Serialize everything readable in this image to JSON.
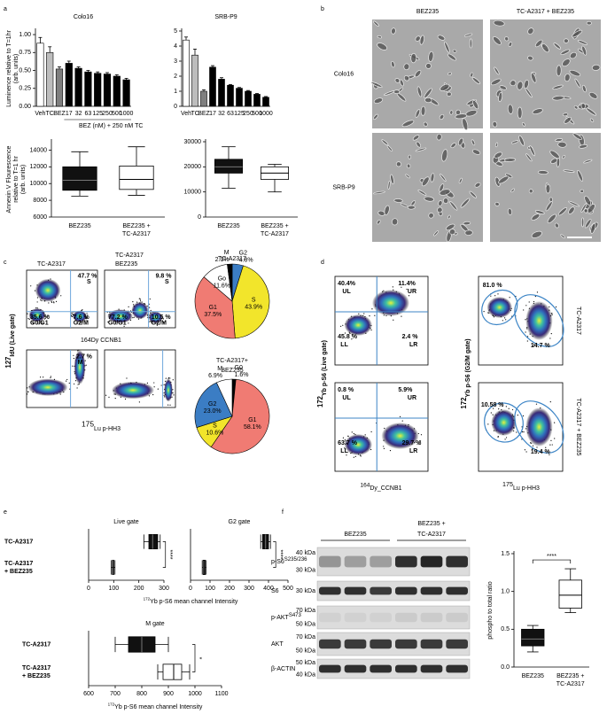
{
  "panel_labels": [
    "a",
    "b",
    "c",
    "d",
    "e",
    "f"
  ],
  "chart_data": [
    {
      "type": "bar",
      "title": "Colo16",
      "ylabel": [
        "Luminence relative to T=1hr",
        "(arb. units)"
      ],
      "xlabel": "BEZ (nM) + 250 nM TC",
      "categories": [
        "Veh",
        "TC",
        "BEZ",
        "17",
        "32",
        "63",
        "125",
        "250",
        "500",
        "1000"
      ],
      "values": [
        0.88,
        0.75,
        0.52,
        0.6,
        0.53,
        0.48,
        0.46,
        0.45,
        0.42,
        0.37
      ],
      "errors": [
        0.08,
        0.08,
        0.03,
        0.03,
        0.02,
        0.02,
        0.02,
        0.02,
        0.02,
        0.02
      ],
      "colors": [
        "#ffffff",
        "#bdbdbd",
        "#7f7f7f",
        "#000000",
        "#000000",
        "#000000",
        "#000000",
        "#000000",
        "#000000",
        "#000000"
      ],
      "ylim": [
        0,
        1.05
      ],
      "yticks": [
        {
          "value": 0,
          "label": "0.00"
        },
        0.25,
        {
          "value": 0.5,
          "label": "0.50"
        },
        0.75,
        {
          "value": 1,
          "label": "1.00"
        }
      ]
    },
    {
      "type": "bar",
      "title": "SRB-P9",
      "categories": [
        "Veh",
        "TC",
        "BEZ",
        "17",
        "32",
        "63",
        "125",
        "250",
        "500",
        "1000"
      ],
      "values": [
        4.4,
        3.4,
        1.0,
        2.6,
        1.8,
        1.4,
        1.2,
        1.0,
        0.8,
        0.6
      ],
      "errors": [
        0.2,
        0.4,
        0.1,
        0.1,
        0.1,
        0.05,
        0.05,
        0.05,
        0.05,
        0.05
      ],
      "colors": [
        "#ffffff",
        "#bdbdbd",
        "#7f7f7f",
        "#000000",
        "#000000",
        "#000000",
        "#000000",
        "#000000",
        "#000000",
        "#000000"
      ],
      "ylim": [
        0,
        5
      ],
      "yticks": [
        0,
        1,
        2,
        3,
        4,
        5
      ]
    },
    {
      "type": "box",
      "ylabel": [
        "Annexin V Flourescence",
        "relative to T=1 hr",
        "(arb. units)"
      ],
      "categories": [
        [
          "BEZ235"
        ],
        [
          "BEZ235 +",
          "TC-A2317"
        ]
      ],
      "stats": [
        {
          "min": 8500,
          "q1": 9200,
          "median": 10400,
          "q3": 12000,
          "max": 13800
        },
        {
          "min": 8600,
          "q1": 9300,
          "median": 10500,
          "q3": 12100,
          "max": 14400
        }
      ],
      "colors": [
        "#111111",
        "#ffffff"
      ],
      "ylim": [
        6000,
        15000
      ],
      "yticks": [
        6000,
        8000,
        10000,
        12000,
        14000
      ]
    },
    {
      "type": "box",
      "categories": [
        [
          "BEZ235"
        ],
        [
          "BEZ235 +",
          "TC-A2317"
        ]
      ],
      "stats": [
        {
          "min": 11500,
          "q1": 17500,
          "median": 20000,
          "q3": 23000,
          "max": 28000
        },
        {
          "min": 10000,
          "q1": 15000,
          "median": 17500,
          "q3": 20000,
          "max": 21000
        }
      ],
      "colors": [
        "#111111",
        "#ffffff"
      ],
      "ylim": [
        0,
        30000
      ],
      "yticks": [
        0,
        10000,
        20000,
        30000
      ]
    },
    {
      "type": "pie",
      "title": [
        "TC-A2317"
      ],
      "categories": [
        "G2",
        "S",
        "G1",
        "Go",
        "M"
      ],
      "values": [
        4.8,
        43.9,
        37.5,
        11.6,
        2.1
      ],
      "value_labels": [
        "4.8%",
        "43.9%",
        "37.5%",
        "11.6%",
        "2.1%"
      ],
      "colors": [
        "#3b7dc4",
        "#f2e52b",
        "#f07b73",
        "#ffffff",
        "#000000"
      ]
    },
    {
      "type": "pie",
      "title": [
        "TC-A2317+",
        "BEZ235"
      ],
      "categories": [
        "G0",
        "G1",
        "S",
        "G2",
        "M"
      ],
      "values": [
        1.6,
        58.1,
        10.6,
        23.0,
        6.9
      ],
      "value_labels": [
        "1.6%",
        "58.1%",
        "10.6%",
        "23.0%",
        "6.9%"
      ],
      "colors": [
        "#000000",
        "#f07b73",
        "#f2e52b",
        "#3b7dc4",
        "#ffffff"
      ]
    },
    {
      "type": "hbox",
      "title": "Live gate",
      "categories": [
        [
          "TC-A2317"
        ],
        [
          "TC-A2317",
          "+ BEZ235"
        ]
      ],
      "stats": [
        {
          "min": 220,
          "q1": 240,
          "median": 255,
          "q3": 275,
          "max": 285
        },
        {
          "min": 90,
          "q1": 95,
          "median": 98,
          "q3": 100,
          "max": 105
        }
      ],
      "colors": [
        "#111111",
        "#ffffff"
      ],
      "xlim": [
        0,
        300
      ],
      "xticks": [
        0,
        100,
        200,
        300
      ],
      "annotation": "****",
      "xlabel": {
        "sup": "172",
        "text": "Yb p-S6 mean channel Intensity"
      }
    },
    {
      "type": "hbox",
      "title": "G2 gate",
      "stats": [
        {
          "min": 360,
          "q1": 370,
          "median": 385,
          "q3": 400,
          "max": 410
        },
        {
          "min": 60,
          "q1": 65,
          "median": 70,
          "q3": 75,
          "max": 80
        }
      ],
      "colors": [
        "#111111",
        "#ffffff"
      ],
      "xlim": [
        0,
        500
      ],
      "xticks": [
        0,
        100,
        200,
        300,
        400,
        500
      ],
      "annotation": "****"
    },
    {
      "type": "hbox",
      "title": "M gate",
      "categories": [
        [
          "TC-A2317"
        ],
        [
          "TC-A2317",
          "+ BEZ235"
        ]
      ],
      "stats": [
        {
          "min": 700,
          "q1": 750,
          "median": 800,
          "q3": 850,
          "max": 900
        },
        {
          "min": 860,
          "q1": 880,
          "median": 920,
          "q3": 950,
          "max": 980
        }
      ],
      "colors": [
        "#111111",
        "#ffffff"
      ],
      "xlim": [
        600,
        1100
      ],
      "xticks": [
        600,
        700,
        800,
        900,
        1000,
        1100
      ],
      "annotation": "*",
      "xlabel": {
        "sup": "172",
        "text": "Yb p-S6 mean channel Intensity"
      }
    },
    {
      "type": "box",
      "ylabel": [
        "phospho to total ratio"
      ],
      "categories": [
        [
          "BEZ235"
        ],
        [
          "BEZ235 +",
          "TC-A2317"
        ]
      ],
      "stats": [
        {
          "min": 0.2,
          "q1": 0.28,
          "median": 0.37,
          "q3": 0.5,
          "max": 0.55
        },
        {
          "min": 0.72,
          "q1": 0.78,
          "median": 0.95,
          "q3": 1.15,
          "max": 1.3
        }
      ],
      "colors": [
        "#111111",
        "#ffffff"
      ],
      "ylim": [
        0,
        1.5
      ],
      "yticks": [
        {
          "value": 0,
          "label": "0.0"
        },
        0.5,
        {
          "value": 1,
          "label": "1.0"
        },
        1.5
      ],
      "annotation": "****"
    }
  ],
  "micrographs": {
    "columns": [
      "BEZ235",
      "TC-A2317 + BEZ235"
    ],
    "rows": [
      "Colo16",
      "SRB-P9"
    ]
  },
  "cytometry_c": {
    "ylabel": {
      "sup": "127",
      "text": "IdU (Live gate)"
    },
    "xlabel_top": "164Dy CCNB1",
    "xlabel_bottom": {
      "sup": "175",
      "text": "Lu p-HH3"
    },
    "plots": [
      {
        "title": [
          "TC-A2317"
        ],
        "gates": [
          "47.7 %",
          "S",
          "35.6 %",
          "G0/G1",
          "7.6 %",
          "G2/M"
        ]
      },
      {
        "title": [
          "TC-A2317",
          "BEZ235"
        ],
        "gates": [
          "9.8 %",
          "S",
          "77.2 %",
          "G0/G1",
          "10.5 %",
          "G2/M"
        ]
      },
      {
        "gates": [
          "2.7 %",
          "M"
        ]
      }
    ]
  },
  "cytometry_d": {
    "ylabel_left": {
      "sup": "172",
      "text": "Yb p-S6 (Live gate)"
    },
    "xlabel_left": {
      "sup": "164",
      "text": "Dy_CCNB1"
    },
    "ylabel_right": {
      "sup": "172",
      "text": "Yb p-S6 (G2/M gate)"
    },
    "xlabel_right": {
      "sup": "175",
      "text": "Lu p-HH3"
    },
    "plots": [
      {
        "gates": [
          "40.4%",
          "UL",
          "11.4%",
          "UR",
          "45.8 %",
          "LL",
          "2.4 %",
          "LR"
        ]
      },
      {
        "gates": [
          "0.8 %",
          "UL",
          "5.9%",
          "UR",
          "63.7 %",
          "LL",
          "29.7 %",
          "LR"
        ]
      },
      {
        "gates": [
          "81.0 %",
          "14.7 %"
        ],
        "sample": "TC-A2317"
      },
      {
        "gates": [
          "10.58 %",
          "19.4 %"
        ],
        "sample": "TC-A2317 + BEZ235"
      }
    ]
  },
  "blot": {
    "groups": [
      [
        "BEZ235"
      ],
      [
        "BEZ235 +",
        "TC-A2317"
      ]
    ],
    "rows": [
      {
        "name": "p-S6",
        "sup": "S235/236",
        "markers": [
          "40 kDa",
          "30 kDa"
        ]
      },
      {
        "name": "S6",
        "markers": [
          "30 kDa"
        ]
      },
      {
        "name": "p-AKT",
        "sup": "S473",
        "markers": [
          "70 kDa",
          "50 kDa"
        ]
      },
      {
        "name": "AKT",
        "markers": [
          "70 kDa",
          "50 kDa"
        ]
      },
      {
        "name": "β-ACTIN",
        "markers": [
          "50 kDa",
          "40 kDa"
        ]
      }
    ]
  }
}
